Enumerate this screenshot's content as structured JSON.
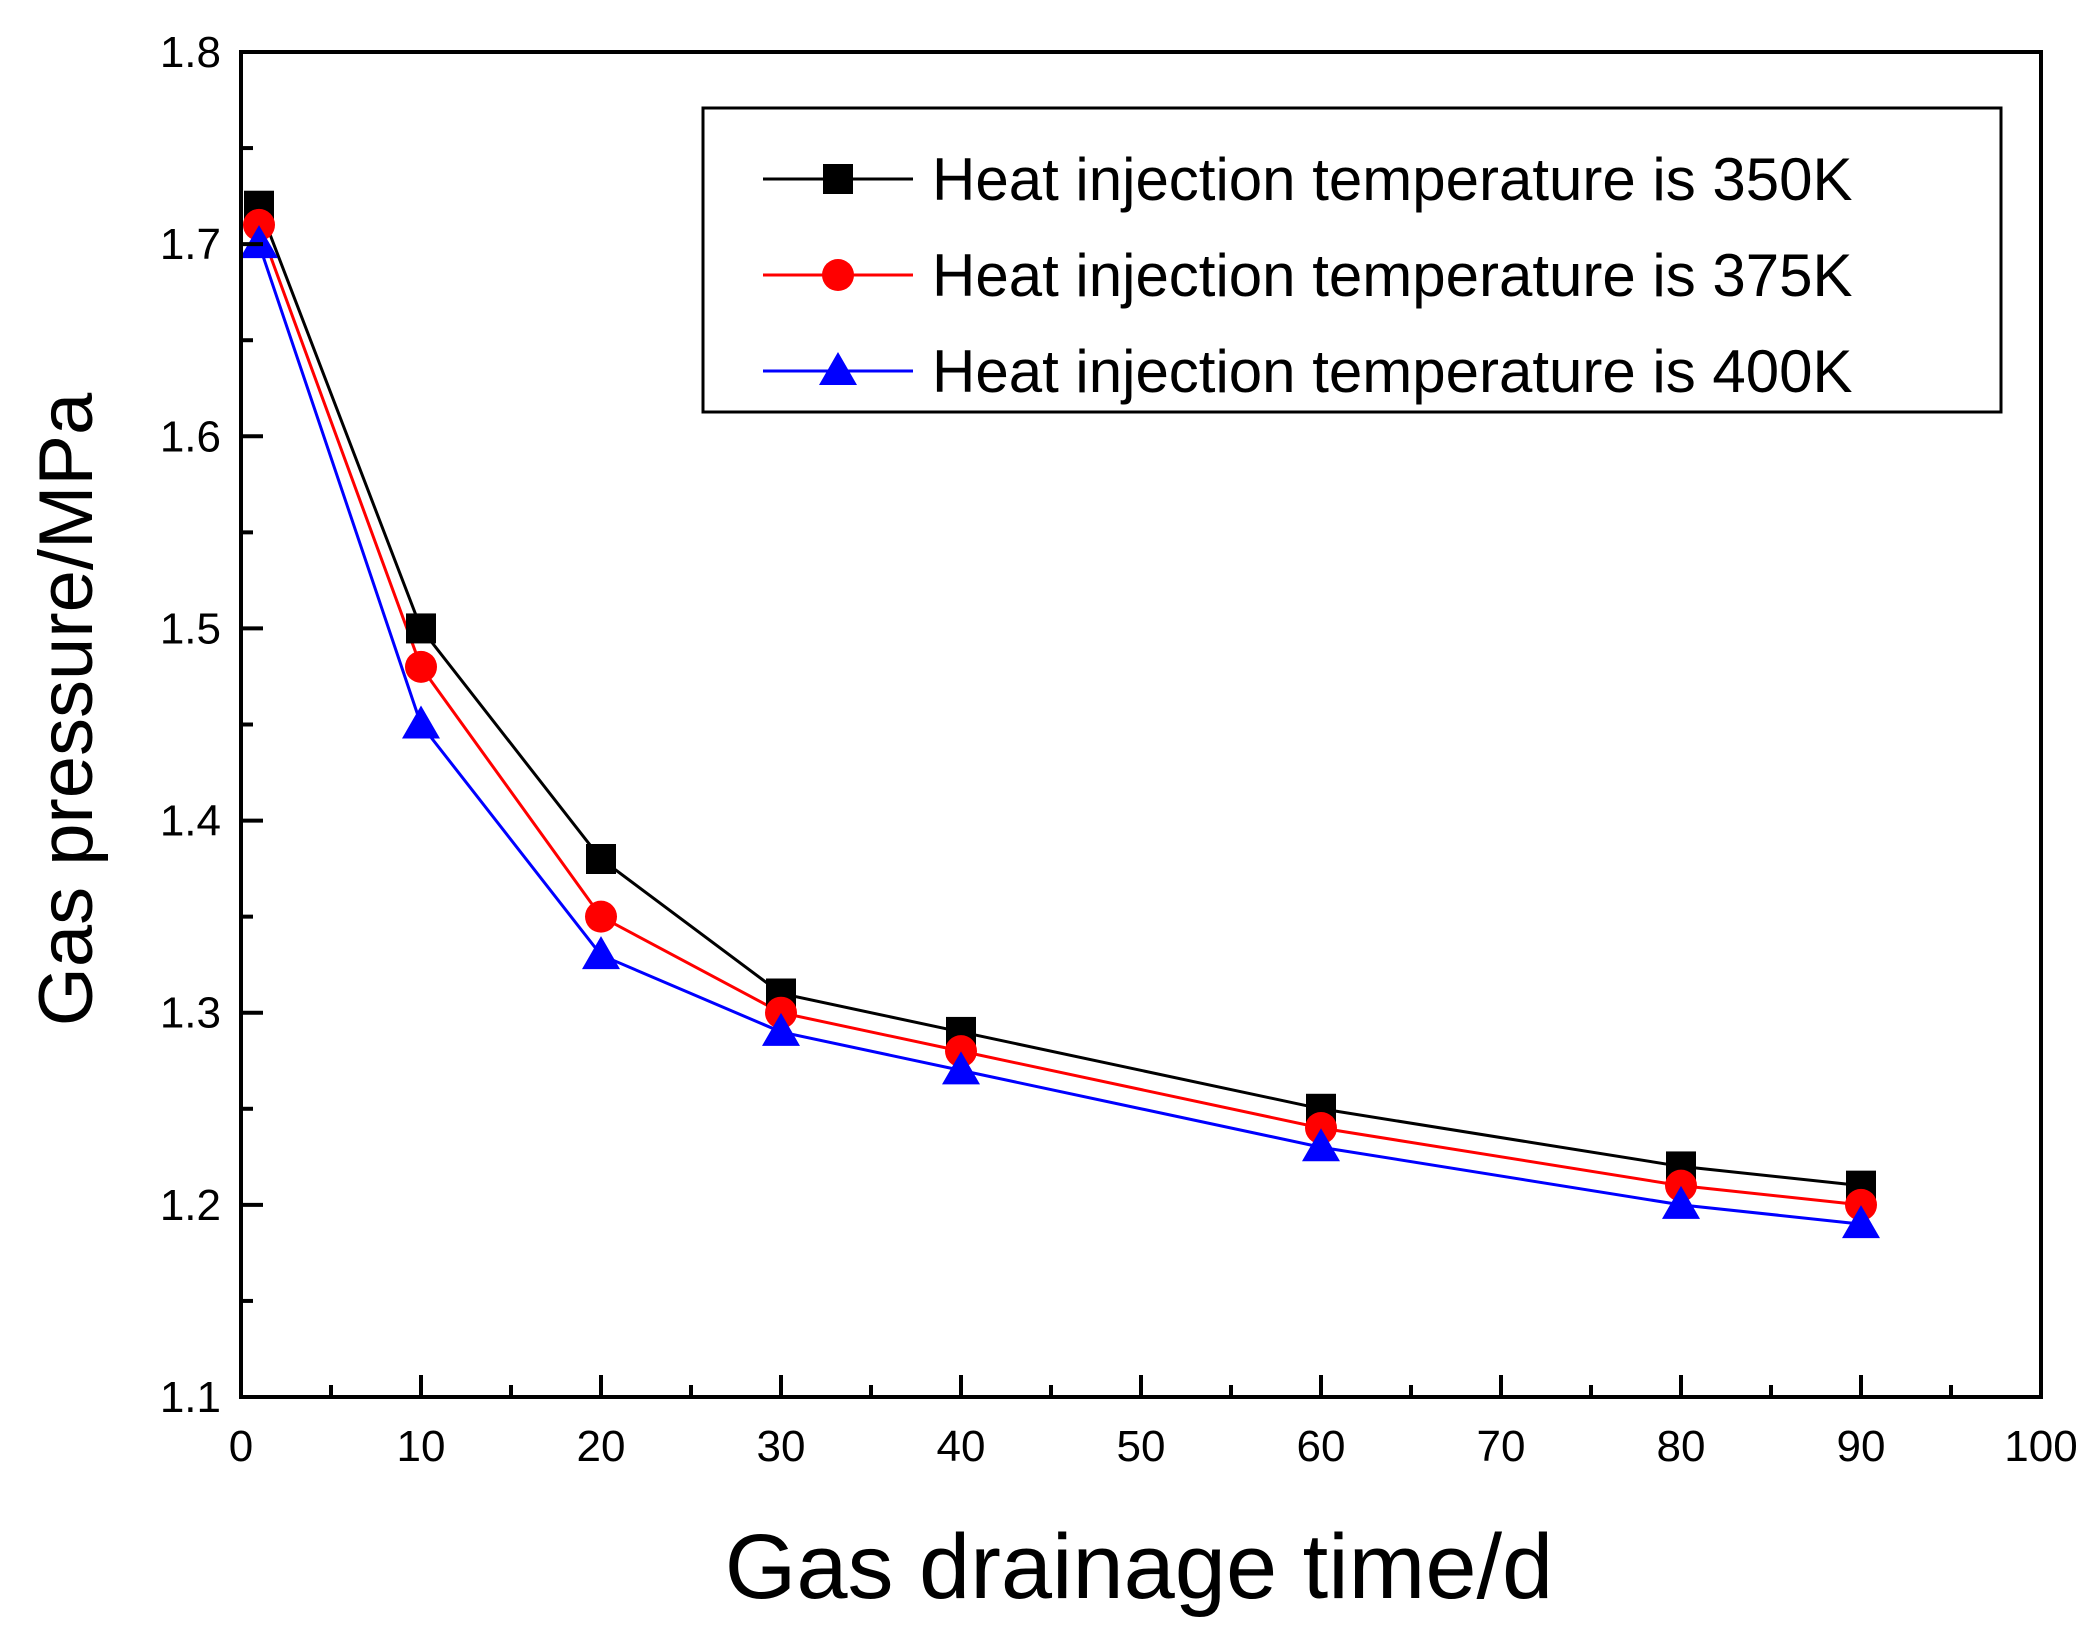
{
  "chart_data": {
    "type": "line",
    "xlabel": "Gas drainage time/d",
    "ylabel": "Gas pressure/MPa",
    "xlim": [
      0,
      100
    ],
    "ylim": [
      1.1,
      1.8
    ],
    "x_ticks": [
      0,
      10,
      20,
      30,
      40,
      50,
      60,
      70,
      80,
      90,
      100
    ],
    "y_ticks": [
      1.1,
      1.2,
      1.3,
      1.4,
      1.5,
      1.6,
      1.7,
      1.8
    ],
    "x_tick_labels": [
      "0",
      "10",
      "20",
      "30",
      "40",
      "50",
      "60",
      "70",
      "80",
      "90",
      "100"
    ],
    "y_tick_labels": [
      "1.1",
      "1.2",
      "1.3",
      "1.4",
      "1.5",
      "1.6",
      "1.7",
      "1.8"
    ],
    "grid": false,
    "legend_position": "top-right",
    "x": [
      1,
      10,
      20,
      30,
      40,
      60,
      80,
      90
    ],
    "series": [
      {
        "name": "Heat injection temperature is 350K",
        "marker": "square",
        "color": "#000000",
        "values": [
          1.72,
          1.5,
          1.38,
          1.31,
          1.29,
          1.25,
          1.22,
          1.21
        ]
      },
      {
        "name": "Heat injection temperature is 375K",
        "marker": "circle",
        "color": "#ff0000",
        "values": [
          1.71,
          1.48,
          1.35,
          1.3,
          1.28,
          1.24,
          1.21,
          1.2
        ]
      },
      {
        "name": "Heat injection temperature is 400K",
        "marker": "triangle",
        "color": "#0000ff",
        "values": [
          1.7,
          1.45,
          1.33,
          1.29,
          1.27,
          1.23,
          1.2,
          1.19
        ]
      }
    ]
  }
}
